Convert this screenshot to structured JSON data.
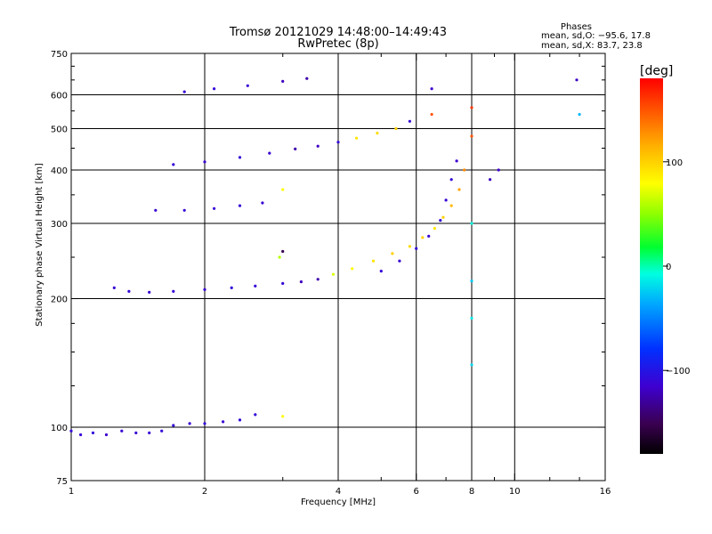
{
  "chart_data": {
    "type": "scatter",
    "title": "Tromsø 20121029 14:48:00–14:49:43",
    "subtitle": "RwPretec (8p)",
    "xlabel": "Frequency [MHz]",
    "ylabel": "Stationary phase Virtual Height [km]",
    "x_scale": "log",
    "y_scale": "log",
    "xlim": [
      1,
      16
    ],
    "ylim": [
      75,
      750
    ],
    "x_ticks": [
      "1",
      "2",
      "4",
      "6",
      "8",
      "10",
      "16"
    ],
    "x_tick_values": [
      1,
      2,
      4,
      6,
      8,
      10,
      16
    ],
    "y_ticks": [
      "75",
      "100",
      "200",
      "300",
      "400",
      "500",
      "600",
      "750"
    ],
    "y_tick_values": [
      75,
      100,
      200,
      300,
      400,
      500,
      600,
      750
    ],
    "x_gridlines": [
      2,
      4,
      6,
      8,
      10
    ],
    "y_gridlines": [
      100,
      200,
      300,
      400,
      500,
      600
    ],
    "grid": true,
    "phase_info": {
      "heading": "Phases",
      "line_o": "mean, sd,O: −95.6, 17.8",
      "line_x": "mean, sd,X:  83.7, 23.8"
    },
    "colorbar": {
      "label": "[deg]",
      "ticks": [
        "100",
        "0",
        "−100"
      ],
      "tick_values": [
        100,
        0,
        -100
      ],
      "range": [
        -180,
        180
      ],
      "colormap": "rainbow"
    },
    "series": [
      {
        "values": [
          {
            "x": 1.0,
            "y": 98,
            "c": -110
          },
          {
            "x": 1.05,
            "y": 96,
            "c": -112
          },
          {
            "x": 1.12,
            "y": 97,
            "c": -108
          },
          {
            "x": 1.2,
            "y": 96,
            "c": -115
          },
          {
            "x": 1.3,
            "y": 98,
            "c": -112
          },
          {
            "x": 1.4,
            "y": 97,
            "c": -110
          },
          {
            "x": 1.5,
            "y": 97,
            "c": -112
          },
          {
            "x": 1.6,
            "y": 98,
            "c": -108
          },
          {
            "x": 1.7,
            "y": 101,
            "c": -110
          },
          {
            "x": 1.85,
            "y": 102,
            "c": -112
          },
          {
            "x": 2.0,
            "y": 102,
            "c": -110
          },
          {
            "x": 2.2,
            "y": 103,
            "c": -112
          },
          {
            "x": 2.4,
            "y": 104,
            "c": -108
          },
          {
            "x": 2.6,
            "y": 107,
            "c": -110
          },
          {
            "x": 3.0,
            "y": 106,
            "c": 80
          },
          {
            "x": 1.25,
            "y": 212,
            "c": -112
          },
          {
            "x": 1.35,
            "y": 208,
            "c": -110
          },
          {
            "x": 1.5,
            "y": 207,
            "c": -112
          },
          {
            "x": 1.7,
            "y": 208,
            "c": -110
          },
          {
            "x": 2.0,
            "y": 210,
            "c": -112
          },
          {
            "x": 2.3,
            "y": 212,
            "c": -110
          },
          {
            "x": 2.6,
            "y": 214,
            "c": -112
          },
          {
            "x": 3.0,
            "y": 217,
            "c": -110
          },
          {
            "x": 3.3,
            "y": 219,
            "c": -120
          },
          {
            "x": 3.6,
            "y": 222,
            "c": -125
          },
          {
            "x": 3.9,
            "y": 228,
            "c": 70
          },
          {
            "x": 4.3,
            "y": 235,
            "c": 80
          },
          {
            "x": 4.8,
            "y": 245,
            "c": 90
          },
          {
            "x": 5.3,
            "y": 255,
            "c": 100
          },
          {
            "x": 5.8,
            "y": 265,
            "c": 95
          },
          {
            "x": 6.2,
            "y": 278,
            "c": 100
          },
          {
            "x": 6.6,
            "y": 292,
            "c": 90
          },
          {
            "x": 6.9,
            "y": 310,
            "c": 100
          },
          {
            "x": 7.2,
            "y": 330,
            "c": 110
          },
          {
            "x": 7.5,
            "y": 360,
            "c": 120
          },
          {
            "x": 7.7,
            "y": 400,
            "c": 130
          },
          {
            "x": 5.0,
            "y": 232,
            "c": -110
          },
          {
            "x": 5.5,
            "y": 245,
            "c": -112
          },
          {
            "x": 6.0,
            "y": 262,
            "c": -110
          },
          {
            "x": 6.4,
            "y": 280,
            "c": -112
          },
          {
            "x": 6.8,
            "y": 305,
            "c": -110
          },
          {
            "x": 7.0,
            "y": 340,
            "c": -112
          },
          {
            "x": 7.2,
            "y": 380,
            "c": -110
          },
          {
            "x": 7.4,
            "y": 420,
            "c": -115
          },
          {
            "x": 1.7,
            "y": 412,
            "c": -110
          },
          {
            "x": 2.0,
            "y": 418,
            "c": -112
          },
          {
            "x": 2.4,
            "y": 428,
            "c": -110
          },
          {
            "x": 2.8,
            "y": 438,
            "c": -112
          },
          {
            "x": 3.2,
            "y": 448,
            "c": -125
          },
          {
            "x": 3.6,
            "y": 455,
            "c": -118
          },
          {
            "x": 4.0,
            "y": 465,
            "c": -110
          },
          {
            "x": 4.4,
            "y": 475,
            "c": 90
          },
          {
            "x": 4.9,
            "y": 488,
            "c": 95
          },
          {
            "x": 5.4,
            "y": 500,
            "c": 100
          },
          {
            "x": 5.8,
            "y": 520,
            "c": -110
          },
          {
            "x": 1.55,
            "y": 322,
            "c": -112
          },
          {
            "x": 1.8,
            "y": 322,
            "c": -110
          },
          {
            "x": 2.1,
            "y": 325,
            "c": -112
          },
          {
            "x": 2.4,
            "y": 330,
            "c": -110
          },
          {
            "x": 2.7,
            "y": 335,
            "c": -112
          },
          {
            "x": 1.8,
            "y": 610,
            "c": -112
          },
          {
            "x": 2.1,
            "y": 620,
            "c": -110
          },
          {
            "x": 2.5,
            "y": 630,
            "c": -112
          },
          {
            "x": 3.0,
            "y": 645,
            "c": -120
          },
          {
            "x": 3.4,
            "y": 655,
            "c": -125
          },
          {
            "x": 8.0,
            "y": 140,
            "c": -20
          },
          {
            "x": 8.0,
            "y": 180,
            "c": -15
          },
          {
            "x": 8.0,
            "y": 220,
            "c": -25
          },
          {
            "x": 8.0,
            "y": 300,
            "c": -10
          },
          {
            "x": 8.0,
            "y": 480,
            "c": 150
          },
          {
            "x": 8.0,
            "y": 560,
            "c": 160
          },
          {
            "x": 6.5,
            "y": 620,
            "c": -115
          },
          {
            "x": 6.5,
            "y": 540,
            "c": 150
          },
          {
            "x": 8.8,
            "y": 380,
            "c": -120
          },
          {
            "x": 9.2,
            "y": 400,
            "c": -115
          },
          {
            "x": 13.8,
            "y": 650,
            "c": -118
          },
          {
            "x": 14.0,
            "y": 540,
            "c": -30
          },
          {
            "x": 3.0,
            "y": 360,
            "c": 80
          },
          {
            "x": 3.0,
            "y": 258,
            "c": -150
          },
          {
            "x": 2.95,
            "y": 250,
            "c": 60
          }
        ]
      }
    ]
  }
}
